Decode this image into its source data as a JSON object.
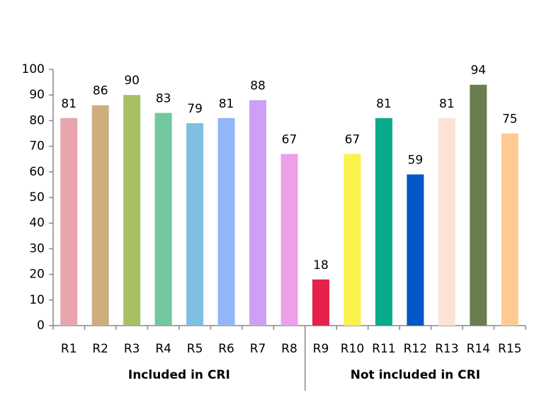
{
  "chart_data": {
    "type": "bar",
    "categories": [
      "R1",
      "R2",
      "R3",
      "R4",
      "R5",
      "R6",
      "R7",
      "R8",
      "R9",
      "R10",
      "R11",
      "R12",
      "R13",
      "R14",
      "R15"
    ],
    "series": [
      {
        "values": [
          81,
          86,
          90,
          83,
          79,
          81,
          88,
          67,
          18,
          67,
          81,
          59,
          81,
          94,
          75
        ],
        "colors": [
          "#e8a5ae",
          "#cead7e",
          "#a8bf62",
          "#72c6a0",
          "#7fbfe0",
          "#93b6f7",
          "#cba0f5",
          "#eda0e8",
          "#e5204b",
          "#fbf24d",
          "#0aab8a",
          "#0557c6",
          "#fde3d5",
          "#6a7d4e",
          "#fdcb92"
        ]
      }
    ],
    "groups": [
      {
        "label": "Included in CRI",
        "count": 8
      },
      {
        "label": "Not included in CRI",
        "count": 7
      }
    ],
    "ylim": [
      0,
      100
    ],
    "yticks": [
      0,
      10,
      20,
      30,
      40,
      50,
      60,
      70,
      80,
      90,
      100
    ],
    "grid": false
  }
}
